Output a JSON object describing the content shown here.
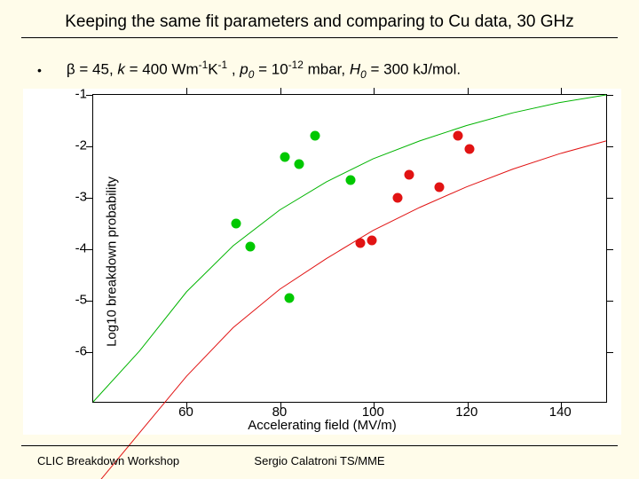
{
  "slide": {
    "title": "Keeping the same fit parameters and comparing to Cu data, 30 GHz",
    "bullet": {
      "beta": "β = 45, ",
      "k": "k",
      "k_rest": " = 400 Wm",
      "k_sup": "-1",
      "k_sup2": "K",
      "k_sup3": "-1",
      "p": ", ",
      "p_var": "p",
      "p_sub": "0",
      "p_rest": " = 10",
      "p_sup": "-12",
      "p_tail": " mbar, ",
      "h_var": "H",
      "h_sub": "0",
      "h_rest": " = 300 kJ/mol."
    }
  },
  "footer": {
    "left": "CLIC Breakdown Workshop",
    "mid": "Sergio Calatroni TS/MME"
  },
  "chart": {
    "type": "scatter",
    "background_color": "#ffffff",
    "xlim": [
      40,
      150
    ],
    "ylim": [
      -7,
      -1
    ],
    "xticks": [
      60,
      80,
      100,
      120,
      140
    ],
    "yticks": [
      -1,
      -2,
      -3,
      -4,
      -5,
      -6
    ],
    "x_axis_label": "Accelerating field (MV/m)",
    "y_axis_label": "Log10 breakdown probability",
    "curve_green_color": "#00b400",
    "curve_red_color": "#e11313",
    "curve_width": 1,
    "curves": {
      "green": [
        [
          40,
          -7.0
        ],
        [
          50,
          -6.0
        ],
        [
          60,
          -4.85
        ],
        [
          70,
          -3.95
        ],
        [
          80,
          -3.25
        ],
        [
          90,
          -2.7
        ],
        [
          100,
          -2.25
        ],
        [
          110,
          -1.9
        ],
        [
          120,
          -1.6
        ],
        [
          130,
          -1.35
        ],
        [
          140,
          -1.15
        ],
        [
          150,
          -1.0
        ]
      ],
      "red": [
        [
          40,
          -8.7
        ],
        [
          50,
          -7.6
        ],
        [
          60,
          -6.5
        ],
        [
          70,
          -5.55
        ],
        [
          80,
          -4.8
        ],
        [
          90,
          -4.2
        ],
        [
          100,
          -3.65
        ],
        [
          110,
          -3.2
        ],
        [
          120,
          -2.8
        ],
        [
          130,
          -2.45
        ],
        [
          140,
          -2.15
        ],
        [
          150,
          -1.9
        ]
      ]
    },
    "points_green_color": "#00c800",
    "points_red_color": "#e11313",
    "points_green": [
      [
        70.5,
        -3.5
      ],
      [
        73.5,
        -3.95
      ],
      [
        81,
        -2.2
      ],
      [
        82,
        -4.95
      ],
      [
        84,
        -2.35
      ],
      [
        87.5,
        -1.8
      ],
      [
        95,
        -2.65
      ]
    ],
    "points_red": [
      [
        97,
        -3.88
      ],
      [
        99.5,
        -3.82
      ],
      [
        105,
        -3.0
      ],
      [
        107.5,
        -2.55
      ],
      [
        114,
        -2.8
      ],
      [
        118,
        -1.8
      ],
      [
        120.5,
        -2.05
      ]
    ]
  }
}
